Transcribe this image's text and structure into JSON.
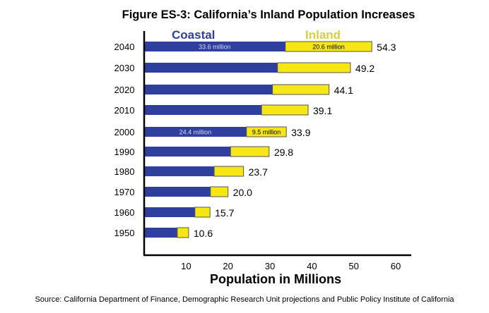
{
  "chart_data": {
    "type": "bar",
    "orientation": "horizontal",
    "stacked": true,
    "title": "Figure ES-3: California’s Inland Population Increases",
    "xlabel": "Population in Millions",
    "source": "Source: California Department of Finance, Demographic Research Unit projections and Public Policy Institute of California",
    "xlim": [
      0,
      60
    ],
    "xticks": [
      10,
      20,
      30,
      40,
      50,
      60
    ],
    "categories": [
      "2040",
      "2030",
      "2020",
      "2010",
      "2000",
      "1990",
      "1980",
      "1970",
      "1960",
      "1950"
    ],
    "series": [
      {
        "name": "Coastal",
        "color": "#2e3f9e",
        "values": [
          33.6,
          31.8,
          30.6,
          28.0,
          24.4,
          20.6,
          16.7,
          15.8,
          12.1,
          7.9
        ]
      },
      {
        "name": "Inland",
        "color": "#f5e614",
        "values": [
          20.6,
          17.4,
          13.5,
          11.1,
          9.5,
          9.2,
          7.0,
          4.2,
          3.6,
          2.7
        ]
      }
    ],
    "totals": [
      "54.3",
      "49.2",
      "44.1",
      "39.1",
      "33.9",
      "29.8",
      "23.7",
      "20.0",
      "15.7",
      "10.6"
    ],
    "segment_labels": [
      {
        "category": "2040",
        "coastal": "33.6 million",
        "inland": "20.6 million"
      },
      {
        "category": "2000",
        "coastal": "24.4 million",
        "inland": "9.5 million"
      }
    ],
    "legend_colors": {
      "Coastal": "#2e3f9e",
      "Inland": "#d8cf3a"
    },
    "grid": false
  }
}
